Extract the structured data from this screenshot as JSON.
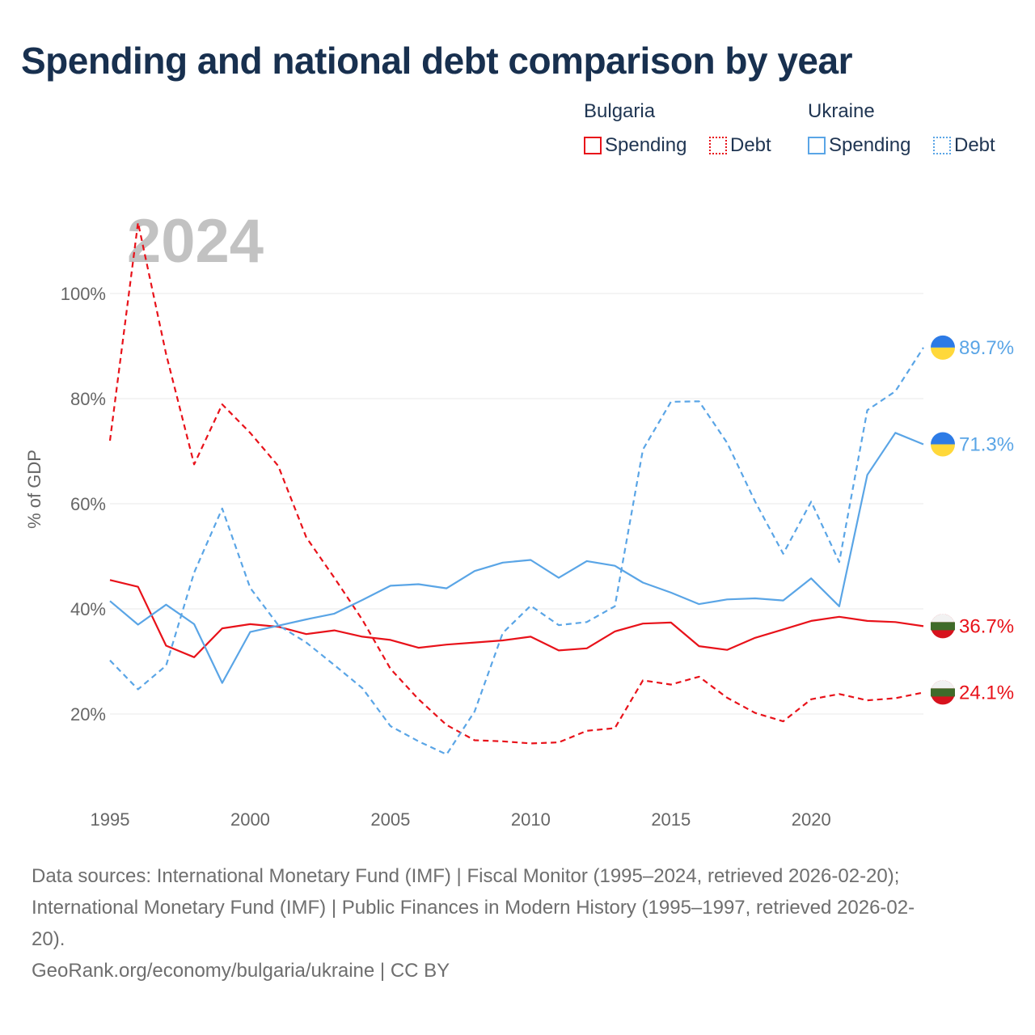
{
  "title": "Spending and national debt comparison by year",
  "legend": {
    "groups": [
      {
        "name": "Bulgaria",
        "items": [
          "Spending",
          "Debt"
        ],
        "color": "#e8121a"
      },
      {
        "name": "Ukraine",
        "items": [
          "Spending",
          "Debt"
        ],
        "color": "#5aa5e6"
      }
    ]
  },
  "footer": {
    "source_lines": [
      "Data sources: International Monetary Fund (IMF) | Fiscal Monitor (1995–2024, retrieved 2026-02-20);",
      "International Monetary Fund (IMF) | Public Finances in Modern History (1995–1997, retrieved 2026-02-",
      "20)."
    ],
    "credit": "GeoRank.org/economy/bulgaria/ukraine | CC BY"
  },
  "chart_data": {
    "type": "line",
    "title": "Spending and national debt comparison by year",
    "year_label": "2024",
    "ylabel": "% of GDP",
    "xlabel": "",
    "xlim": [
      1995,
      2024
    ],
    "ylim": [
      5,
      115
    ],
    "x_ticks": [
      1995,
      2000,
      2005,
      2010,
      2015,
      2020
    ],
    "x_tick_labels": [
      "1995",
      "2000",
      "2005",
      "2010",
      "2015",
      "2020"
    ],
    "y_ticks": [
      20,
      40,
      60,
      80,
      100
    ],
    "y_tick_labels": [
      "20%",
      "40%",
      "60%",
      "80%",
      "100%"
    ],
    "grid": true,
    "years": [
      1995,
      1996,
      1997,
      1998,
      1999,
      2000,
      2001,
      2002,
      2003,
      2004,
      2005,
      2006,
      2007,
      2008,
      2009,
      2010,
      2011,
      2012,
      2013,
      2014,
      2015,
      2016,
      2017,
      2018,
      2019,
      2020,
      2021,
      2022,
      2023,
      2024
    ],
    "series": [
      {
        "name": "Bulgaria Spending",
        "country": "Bulgaria",
        "metric": "Spending",
        "style": "solid",
        "color": "#e8121a",
        "values": [
          45.5,
          44.2,
          33.0,
          30.8,
          36.3,
          37.1,
          36.6,
          35.2,
          35.9,
          34.7,
          34.1,
          32.6,
          33.2,
          33.6,
          34.0,
          34.7,
          32.1,
          32.5,
          35.7,
          37.2,
          37.4,
          32.9,
          32.2,
          34.5,
          36.1,
          37.7,
          38.5,
          37.7,
          37.5,
          36.7
        ],
        "end_label": "36.7%"
      },
      {
        "name": "Bulgaria Debt",
        "country": "Bulgaria",
        "metric": "Debt",
        "style": "dashed",
        "color": "#e8121a",
        "values": [
          72.0,
          113.5,
          88.5,
          67.5,
          78.9,
          73.5,
          67.2,
          53.6,
          45.9,
          37.9,
          28.6,
          22.8,
          17.9,
          15.0,
          14.8,
          14.4,
          14.6,
          16.8,
          17.3,
          26.4,
          25.6,
          27.1,
          23.1,
          20.2,
          18.6,
          22.8,
          23.8,
          22.6,
          23.0,
          24.1
        ],
        "end_label": "24.1%"
      },
      {
        "name": "Ukraine Spending",
        "country": "Ukraine",
        "metric": "Spending",
        "style": "solid",
        "color": "#5aa5e6",
        "values": [
          41.5,
          37.0,
          40.8,
          37.1,
          25.9,
          35.6,
          36.8,
          38.0,
          39.1,
          41.7,
          44.4,
          44.7,
          43.9,
          47.2,
          48.8,
          49.3,
          45.9,
          49.1,
          48.2,
          45.0,
          43.1,
          40.9,
          41.8,
          42.0,
          41.6,
          45.8,
          40.5,
          65.5,
          73.5,
          71.3
        ],
        "end_label": "71.3%"
      },
      {
        "name": "Ukraine Debt",
        "country": "Ukraine",
        "metric": "Debt",
        "style": "dashed",
        "color": "#5aa5e6",
        "values": [
          30.2,
          24.7,
          29.2,
          46.9,
          59.1,
          44.0,
          36.9,
          33.6,
          29.3,
          24.9,
          17.7,
          14.8,
          12.3,
          20.5,
          35.4,
          40.6,
          36.9,
          37.5,
          40.5,
          70.3,
          79.4,
          79.5,
          71.6,
          60.4,
          50.5,
          60.4,
          48.9,
          77.8,
          81.4,
          89.7
        ],
        "end_label": "89.7%"
      }
    ]
  }
}
